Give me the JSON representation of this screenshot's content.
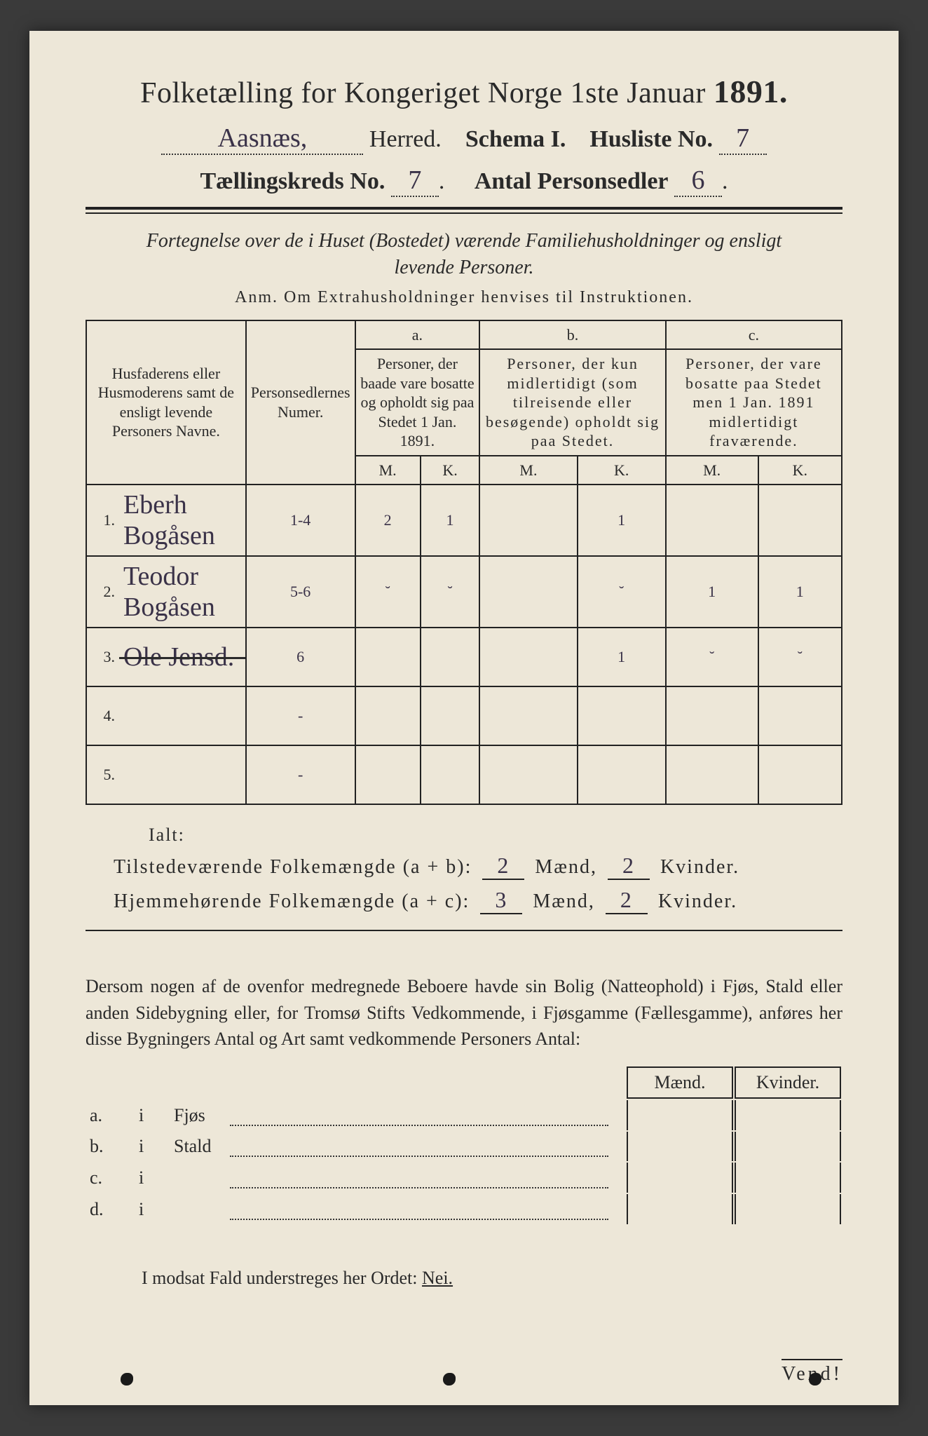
{
  "header": {
    "title_prefix": "Folketælling for Kongeriget Norge 1ste Januar",
    "year": "1891.",
    "herred_value": "Aasnæs,",
    "herred_label": "Herred.",
    "schema_label": "Schema I.",
    "husliste_label": "Husliste No.",
    "husliste_value": "7",
    "kreds_label": "Tællingskreds No.",
    "kreds_value": "7",
    "antal_label": "Antal Personsedler",
    "antal_value": "6"
  },
  "subtitle": {
    "line1": "Fortegnelse over de i Huset (Bostedet) værende Familiehusholdninger og ensligt",
    "line2": "levende Personer.",
    "anm": "Anm.  Om Extrahusholdninger henvises til Instruktionen."
  },
  "table": {
    "col_name": "Husfaderens eller Husmoderens samt de ensligt levende Personers Navne.",
    "col_numer": "Personsedlernes Numer.",
    "col_a_head": "a.",
    "col_a": "Personer, der baade vare bosatte og opholdt sig paa Stedet 1 Jan. 1891.",
    "col_b_head": "b.",
    "col_b": "Personer, der kun midlertidigt (som tilreisende eller besøgende) opholdt sig paa Stedet.",
    "col_c_head": "c.",
    "col_c": "Personer, der vare bosatte paa Stedet men 1 Jan. 1891 midlertidigt fraværende.",
    "mk_m": "M.",
    "mk_k": "K.",
    "rows": [
      {
        "n": "1.",
        "name": "Eberh Bogåsen",
        "numer": "1-4",
        "a_m": "2",
        "a_k": "1",
        "b_m": "",
        "b_k": "1",
        "c_m": "",
        "c_k": "",
        "struck": false
      },
      {
        "n": "2.",
        "name": "Teodor Bogåsen",
        "numer": "5-6",
        "a_m": "˘",
        "a_k": "˘",
        "b_m": "",
        "b_k": "˘",
        "c_m": "1",
        "c_k": "1",
        "struck": false
      },
      {
        "n": "3.",
        "name": "Ole Jensd.",
        "numer": "6",
        "a_m": "",
        "a_k": "",
        "b_m": "",
        "b_k": "1",
        "c_m": "˘",
        "c_k": "˘",
        "struck": true
      },
      {
        "n": "4.",
        "name": "",
        "numer": "-",
        "a_m": "",
        "a_k": "",
        "b_m": "",
        "b_k": "",
        "c_m": "",
        "c_k": "",
        "struck": false
      },
      {
        "n": "5.",
        "name": "",
        "numer": "-",
        "a_m": "",
        "a_k": "",
        "b_m": "",
        "b_k": "",
        "c_m": "",
        "c_k": "",
        "struck": false
      }
    ]
  },
  "totals": {
    "ialt": "Ialt:",
    "tilstede_label": "Tilstedeværende Folkemængde (a + b):",
    "hjemme_label": "Hjemmehørende Folkemængde (a + c):",
    "maend": "Mænd,",
    "kvinder": "Kvinder.",
    "tilstede_m": "2",
    "tilstede_k": "2",
    "hjemme_m": "3",
    "hjemme_k": "2"
  },
  "para": {
    "text": "Dersom nogen af de ovenfor medregnede Beboere havde sin Bolig (Natteophold) i Fjøs, Stald eller anden Sidebygning eller, for Tromsø Stifts Vedkommende, i Fjøsgamme (Fællesgamme), anføres her disse Bygningers Antal og Art samt vedkommende Personers Antal:"
  },
  "side": {
    "maend": "Mænd.",
    "kvinder": "Kvinder.",
    "rows": [
      {
        "label_a": "a.",
        "label_i": "i",
        "name": "Fjøs"
      },
      {
        "label_a": "b.",
        "label_i": "i",
        "name": "Stald"
      },
      {
        "label_a": "c.",
        "label_i": "i",
        "name": ""
      },
      {
        "label_a": "d.",
        "label_i": "i",
        "name": ""
      }
    ]
  },
  "footer": {
    "nei_line": "I modsat Fald understreges her Ordet:",
    "nei": "Nei.",
    "vend": "Vend!"
  },
  "colors": {
    "paper": "#ede7d8",
    "ink": "#2a2a2a",
    "hand": "#3a3248",
    "bg": "#3a3a3a"
  }
}
